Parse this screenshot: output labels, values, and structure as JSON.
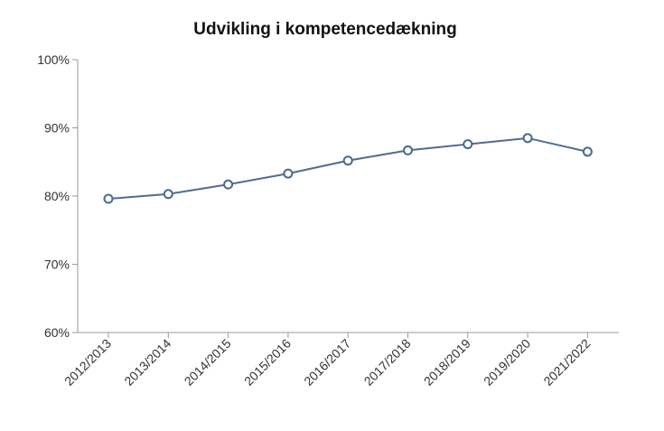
{
  "chart_data": {
    "type": "line",
    "title": "Udvikling i kompetencedækning",
    "xlabel": "",
    "ylabel": "",
    "categories": [
      "2012/2013",
      "2013/2014",
      "2014/2015",
      "2015/2016",
      "2016/2017",
      "2017/2018",
      "2018/2019",
      "2019/2020",
      "2021/2022"
    ],
    "series": [
      {
        "values": [
          79.6,
          80.3,
          81.7,
          83.3,
          85.2,
          86.7,
          87.6,
          88.5,
          86.5
        ]
      }
    ],
    "ylim": [
      60,
      100
    ],
    "yticks": [
      60,
      70,
      80,
      90,
      100
    ],
    "ytick_labels": [
      "60%",
      "70%",
      "80%",
      "90%",
      "100%"
    ],
    "grid": false,
    "legend": "none",
    "colors": {
      "line": "#536b8c",
      "marker": "#4a6a8a",
      "axis": "#999999"
    }
  }
}
